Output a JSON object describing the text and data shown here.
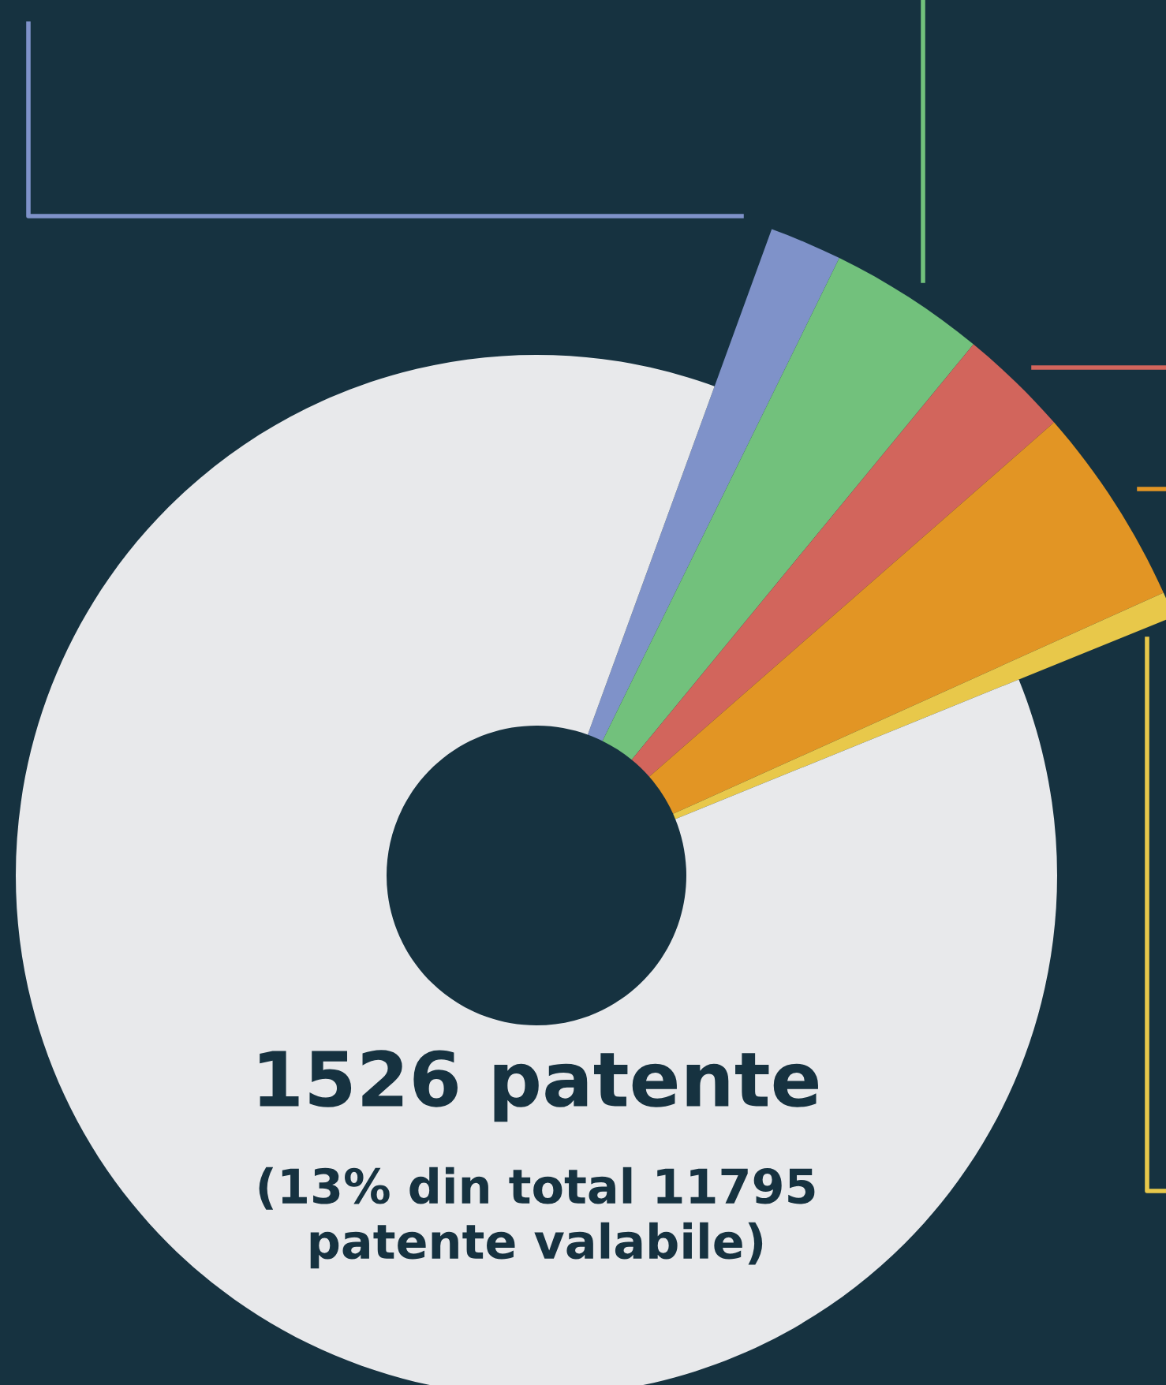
{
  "chart_data": {
    "type": "donut",
    "categories": [
      null,
      null,
      null,
      null,
      null,
      null
    ],
    "values": [
      1.7,
      3.7,
      2.6,
      4.7,
      0.6,
      86.7
    ],
    "colors": [
      "#7f92c9",
      "#72c17c",
      "#d2655c",
      "#e29524",
      "#e8c84a",
      "#e8e9eb"
    ],
    "annotations": [
      "1526 patente",
      "(13% din total 11795\npatente valabile)"
    ]
  }
}
